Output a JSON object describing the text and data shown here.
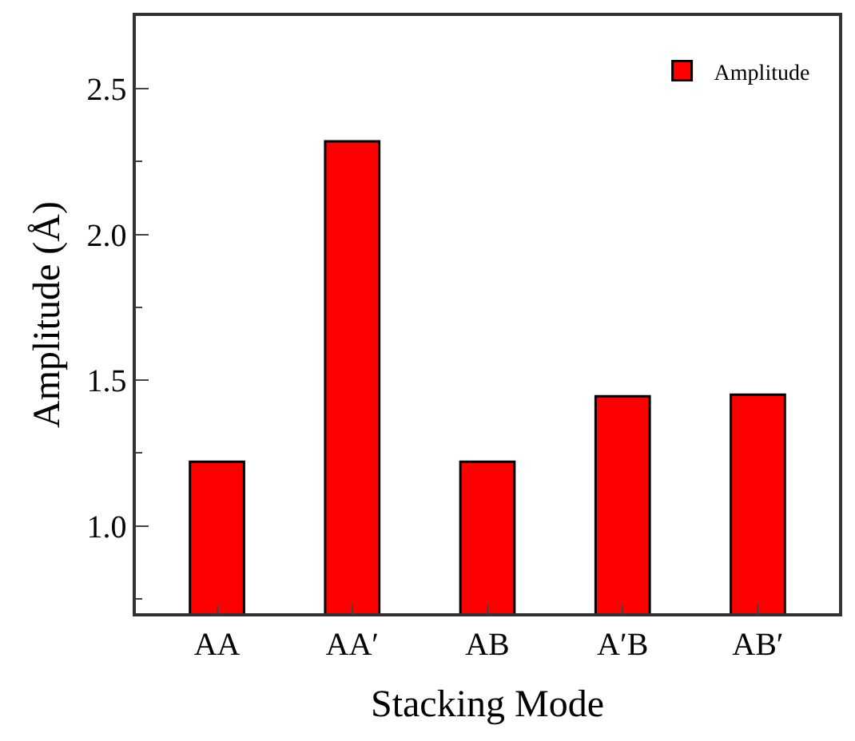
{
  "chart_data": {
    "type": "bar",
    "xlabel": "Stacking Mode",
    "ylabel": "Amplitude (Å)",
    "categories": [
      "AA",
      "AA′",
      "AB",
      "A′B",
      "AB′"
    ],
    "series": [
      {
        "name": "Amplitude",
        "color": "#ff0000",
        "values": [
          1.22,
          2.32,
          1.22,
          1.445,
          1.45
        ]
      }
    ],
    "ylim": [
      0.7,
      2.75
    ],
    "yticks": [
      {
        "value": 0.75,
        "label": null
      },
      {
        "value": 1,
        "label": "1.0"
      },
      {
        "value": 1.25,
        "label": null
      },
      1.5,
      {
        "value": 1.75,
        "label": null
      },
      {
        "value": 2,
        "label": "2.0"
      },
      {
        "value": 2.25,
        "label": null
      },
      2.5
    ],
    "legend": "top right"
  }
}
